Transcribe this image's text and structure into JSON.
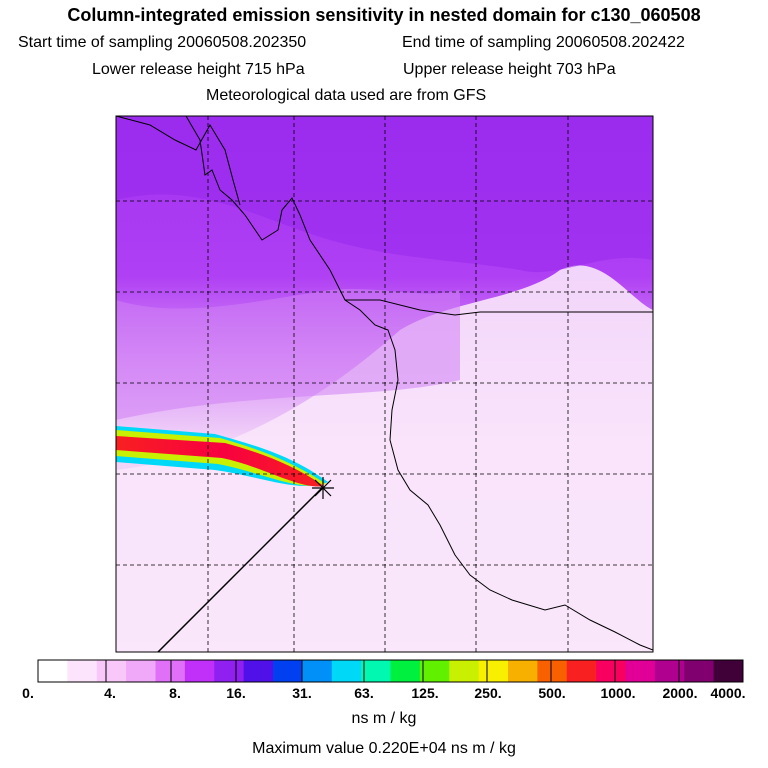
{
  "header": {
    "title": "Column-integrated emission sensitivity in nested domain for c130_060508",
    "start_time": "Start time of sampling 20060508.202350",
    "end_time": "End time of sampling 20060508.202422",
    "lower_height": "Lower release height  715 hPa",
    "upper_height": "Upper release height  703 hPa",
    "met_data": "Meteorological data used are from GFS"
  },
  "colorbar": {
    "labels": [
      "0.",
      "4.",
      "8.",
      "16.",
      "31.",
      "63.",
      "125.",
      "250.",
      "500.",
      "1000.",
      "2000.",
      "4000."
    ],
    "units": "ns m / kg",
    "colors": [
      "#ffffff",
      "#fce4fc",
      "#f8c8f8",
      "#f0a8f8",
      "#e070f8",
      "#c030f8",
      "#9020f0",
      "#5010e8",
      "#0040f0",
      "#0090f8",
      "#00d8f8",
      "#00f8b0",
      "#00f040",
      "#60f000",
      "#c8f000",
      "#f8f000",
      "#f8b000",
      "#f86000",
      "#f82020",
      "#f80060",
      "#e00098",
      "#b00090",
      "#800070",
      "#400038"
    ]
  },
  "max_value": "Maximum value  0.220E+04 ns m / kg"
}
